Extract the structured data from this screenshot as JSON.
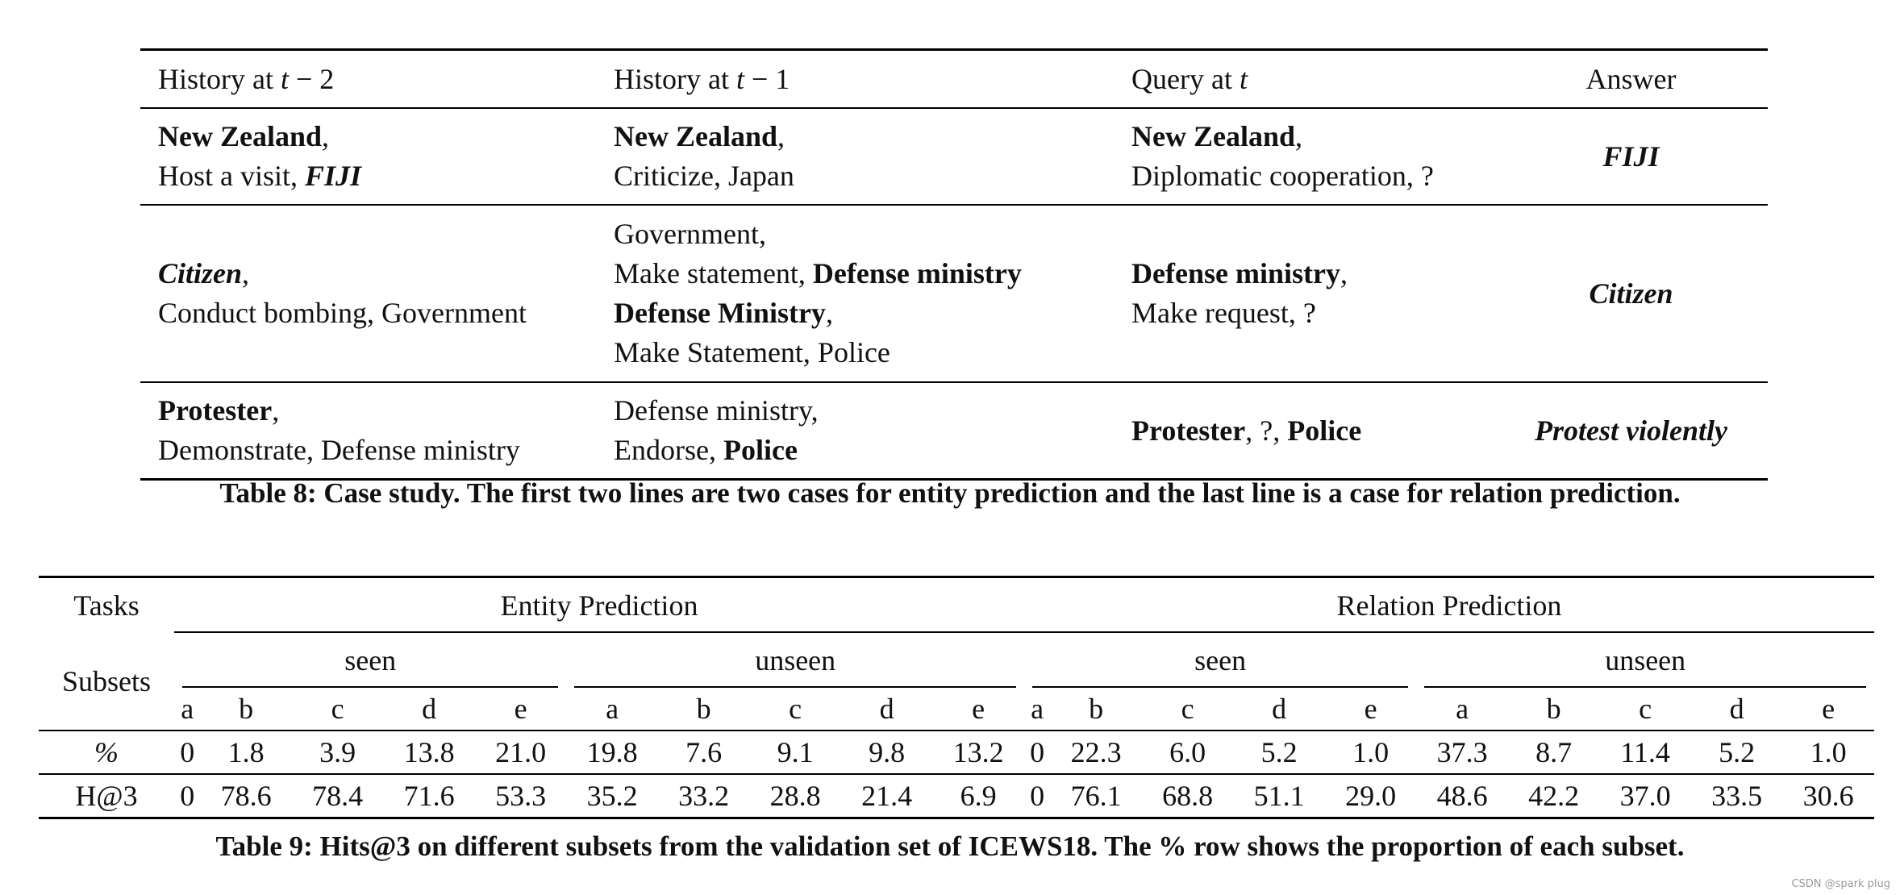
{
  "table8": {
    "headers": {
      "col1_text": "History at ",
      "col1_var": "t",
      "col1_suffix": " − 2",
      "col2_text": "History at ",
      "col2_var": "t",
      "col2_suffix": " − 1",
      "col3_text": "Query at ",
      "col3_var": "t",
      "col4": "Answer"
    },
    "rows": [
      {
        "h2_entity": "New Zealand",
        "h2_rel": "Host a visit, ",
        "h2_obj": "FIJI",
        "h1_entity": "New Zealand",
        "h1_rel": "Criticize, Japan",
        "q_entity": "New Zealand",
        "q_rel": "Diplomatic cooperation, ?",
        "answer": "FIJI"
      },
      {
        "h2_entity": "Citizen",
        "h2_rel": "Conduct bombing, Government",
        "h1a_entity": "Government,",
        "h1a_rel": "Make statement, ",
        "h1a_obj": "Defense ministry",
        "h1b_entity": "Defense Ministry",
        "h1b_rel": "Make Statement, Police",
        "q_entity": "Defense ministry",
        "q_rel": "Make request, ?",
        "answer": "Citizen"
      },
      {
        "h2_entity": "Protester",
        "h2_rel": "Demonstrate, Defense ministry",
        "h1_entity": "Defense ministry,",
        "h1_rel": "Endorse, ",
        "h1_obj": "Police",
        "q_entity": "Protester",
        "q_mid": ", ?, ",
        "q_obj": "Police",
        "answer": "Protest violently"
      }
    ],
    "caption": "Table 8: Case study. The first two lines are two cases for entity prediction and the last line is a case for relation prediction."
  },
  "table9": {
    "tasks_label": "Tasks",
    "entity_prediction": "Entity Prediction",
    "relation_prediction": "Relation Prediction",
    "subsets_label": "Subsets",
    "seen": "seen",
    "unseen": "unseen",
    "letters": [
      "a",
      "b",
      "c",
      "d",
      "e"
    ],
    "rows": [
      {
        "label": "%",
        "values": [
          "0",
          "1.8",
          "3.9",
          "13.8",
          "21.0",
          "19.8",
          "7.6",
          "9.1",
          "9.8",
          "13.2",
          "0",
          "22.3",
          "6.0",
          "5.2",
          "1.0",
          "37.3",
          "8.7",
          "11.4",
          "5.2",
          "1.0"
        ]
      },
      {
        "label": "H@3",
        "values": [
          "0",
          "78.6",
          "78.4",
          "71.6",
          "53.3",
          "35.2",
          "33.2",
          "28.8",
          "21.4",
          "6.9",
          "0",
          "76.1",
          "68.8",
          "51.1",
          "29.0",
          "48.6",
          "42.2",
          "37.0",
          "33.5",
          "30.6"
        ]
      }
    ],
    "caption": "Table 9: Hits@3 on different subsets from the validation set of ICEWS18. The % row shows the proportion of each subset."
  },
  "watermark": "CSDN @spark plug"
}
